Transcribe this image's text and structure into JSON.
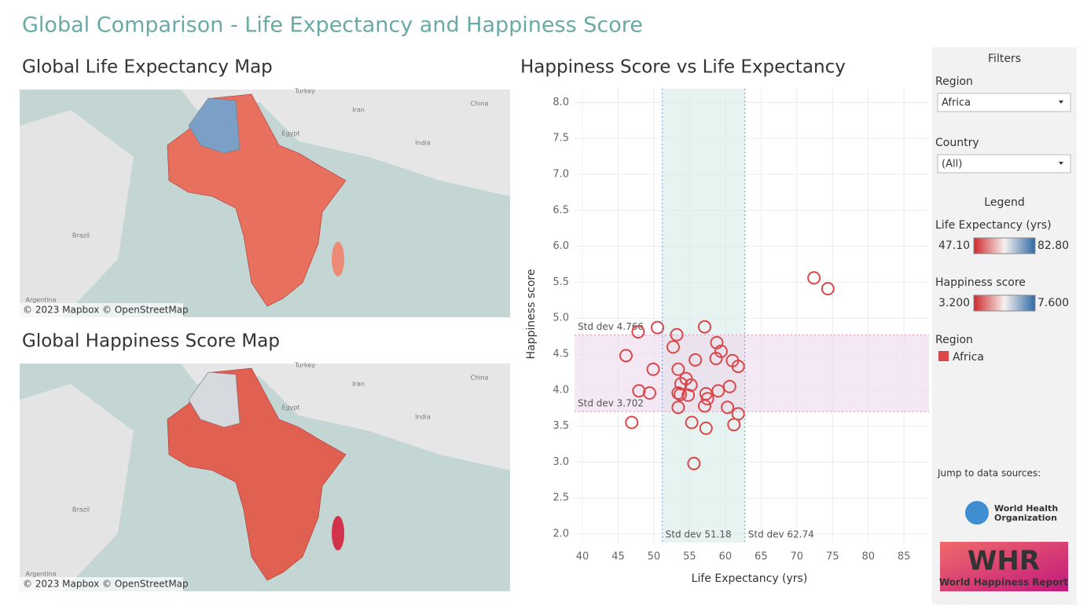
{
  "title": "Global Comparison - Life Expectancy and Happiness Score",
  "maps": [
    {
      "title": "Global Life Expectancy Map",
      "place_labels": [
        "Turkey",
        "Iran",
        "China",
        "Egypt",
        "India",
        "Brazil",
        "Argentina"
      ],
      "credit": "© 2023 Mapbox © OpenStreetMap"
    },
    {
      "title": "Global Happiness Score Map",
      "place_labels": [
        "Turkey",
        "Iran",
        "China",
        "Egypt",
        "India",
        "Brazil",
        "Argentina"
      ],
      "credit": "© 2023 Mapbox © OpenStreetMap"
    }
  ],
  "chart_data": {
    "type": "scatter",
    "title": "Happiness Score vs Life Expectancy",
    "x_label": "Life Expectancy (yrs)",
    "y_label": "Happiness score",
    "x": [
      72.4,
      74.35,
      47.8,
      50.5,
      57.1,
      53.2,
      58.8,
      52.7,
      59.4,
      46.1,
      55.8,
      58.7,
      61.0,
      61.8,
      49.9,
      53.4,
      54.5,
      53.8,
      55.2,
      60.6,
      47.9,
      49.4,
      53.4,
      53.7,
      54.8,
      57.3,
      59.0,
      57.5,
      57.1,
      53.4,
      60.3,
      61.8,
      46.9,
      55.3,
      57.3,
      61.2,
      55.6
    ],
    "series": [
      {
        "name": "Africa",
        "color": "#d9474a",
        "values": [
          5.56,
          5.41,
          4.81,
          4.87,
          4.88,
          4.77,
          4.66,
          4.6,
          4.54,
          4.48,
          4.42,
          4.44,
          4.41,
          4.33,
          4.29,
          4.29,
          4.16,
          4.09,
          4.07,
          4.05,
          3.99,
          3.96,
          3.96,
          3.94,
          3.93,
          3.95,
          3.99,
          3.88,
          3.78,
          3.76,
          3.76,
          3.67,
          3.55,
          3.55,
          3.47,
          3.52,
          2.98
        ]
      }
    ],
    "xlim": [
      38.9,
      88.5
    ],
    "ylim": [
      1.88,
      8.19
    ],
    "xticks": [
      40,
      45,
      50,
      55,
      60,
      65,
      70,
      75,
      80,
      85
    ],
    "yticks": [
      {
        "value": 2,
        "label": "2.0"
      },
      2.5,
      {
        "value": 3,
        "label": "3.0"
      },
      3.5,
      {
        "value": 4,
        "label": "4.0"
      },
      4.5,
      {
        "value": 5,
        "label": "5.0"
      },
      5.5,
      {
        "value": 6,
        "label": "6.0"
      },
      6.5,
      {
        "value": 7,
        "label": "7.0"
      },
      7.5,
      {
        "value": 8,
        "label": "8.0"
      }
    ],
    "x_ref_lines": [
      {
        "value": 51.18,
        "label": "Std dev 51.18"
      },
      {
        "value": 62.74,
        "label": "Std dev 62.74"
      }
    ],
    "y_ref_lines": [
      {
        "value": 4.766,
        "label": "Std dev 4.766"
      },
      {
        "value": 3.702,
        "label": "Std dev 3.702"
      }
    ],
    "grid": true
  },
  "filters": {
    "title": "Filters",
    "region": {
      "label": "Region",
      "value": "Africa"
    },
    "country": {
      "label": "Country",
      "value": "(All)"
    }
  },
  "legend": {
    "title": "Legend",
    "life_expectancy": {
      "label": "Life Expectancy (yrs)",
      "min": "47.10",
      "max": "82.80"
    },
    "happiness": {
      "label": "Happiness score",
      "min": "3.200",
      "max": "7.600"
    },
    "region_label": "Region"
  },
  "sources": {
    "label": "Jump to data sources:",
    "who": [
      "World Health",
      "Organization"
    ],
    "whr_mark": "WHR",
    "whr": "World Happiness Report"
  }
}
